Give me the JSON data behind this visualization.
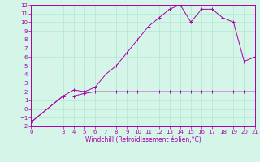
{
  "title": "",
  "xlabel": "Windchill (Refroidissement éolien,°C)",
  "bg_color": "#d4f5e8",
  "line_color": "#aa00aa",
  "grid_color": "#b0e8d0",
  "x_temp": [
    0,
    3,
    4,
    5,
    6,
    7,
    8,
    9,
    10,
    11,
    12,
    13,
    14,
    15,
    16,
    17,
    18,
    19,
    20,
    21
  ],
  "y_temp": [
    -1.5,
    1.5,
    2.2,
    2.0,
    2.5,
    4.0,
    5.0,
    6.5,
    8.0,
    9.5,
    10.5,
    11.5,
    12.0,
    10.0,
    11.5,
    11.5,
    10.5,
    10.0,
    5.5,
    6.0
  ],
  "x_windchill": [
    0,
    3,
    4,
    5,
    6,
    7,
    8,
    9,
    10,
    11,
    12,
    13,
    14,
    15,
    16,
    17,
    18,
    19,
    20,
    21
  ],
  "y_windchill": [
    -1.5,
    1.5,
    1.5,
    1.8,
    2.0,
    2.0,
    2.0,
    2.0,
    2.0,
    2.0,
    2.0,
    2.0,
    2.0,
    2.0,
    2.0,
    2.0,
    2.0,
    2.0,
    2.0,
    2.0
  ],
  "ylim": [
    -2,
    12
  ],
  "xlim": [
    0,
    21
  ],
  "yticks": [
    -2,
    -1,
    0,
    1,
    2,
    3,
    4,
    5,
    6,
    7,
    8,
    9,
    10,
    11,
    12
  ],
  "xticks": [
    0,
    3,
    4,
    5,
    6,
    7,
    8,
    9,
    10,
    11,
    12,
    13,
    14,
    15,
    16,
    17,
    18,
    19,
    20,
    21
  ],
  "tick_fontsize": 5,
  "xlabel_fontsize": 5.5
}
